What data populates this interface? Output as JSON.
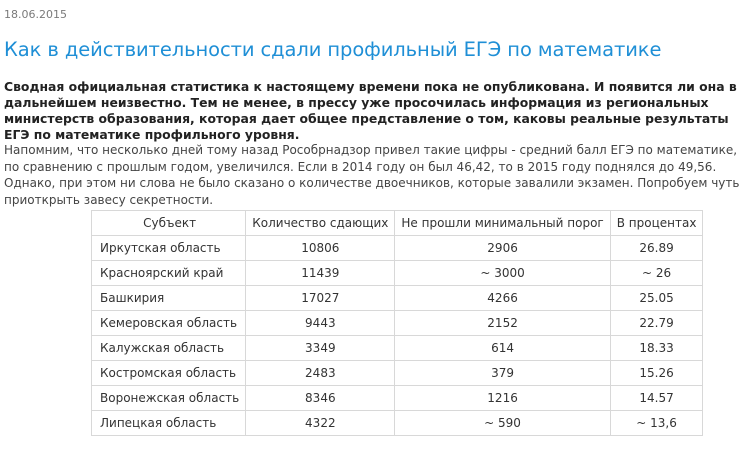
{
  "article": {
    "date": "18.06.2015",
    "title": "Как в действительности сдали профильный ЕГЭ по математике",
    "lead": "Сводная официальная статистика к настоящему времени пока не опубликована. И появится ли она в дальнейшем неизвестно. Тем не менее, в прессу уже просочилась информация из региональных министерств образования, которая дает общее представление о том, каковы реальные результаты ЕГЭ по математике профильного уровня.",
    "body": "Напомним, что несколько дней тому назад Рособрнадзор привел такие цифры - средний балл ЕГЭ по математике, по сравнению с прошлым годом, увеличился. Если в 2014 году он был 46,42, то в 2015 году поднялся до 49,56. Однако, при этом ни слова не было сказано о количестве двоечников, которые завалили экзамен. Попробуем чуть приоткрыть завесу секретности."
  },
  "table": {
    "headers": [
      "Субъект",
      "Количество сдающих",
      "Не прошли минимальный порог",
      "В процентах"
    ],
    "rows": [
      [
        "Иркутская область",
        "10806",
        "2906",
        "26.89"
      ],
      [
        "Красноярский край",
        "11439",
        "~ 3000",
        "~ 26"
      ],
      [
        "Башкирия",
        "17027",
        "4266",
        "25.05"
      ],
      [
        "Кемеровская область",
        "9443",
        "2152",
        "22.79"
      ],
      [
        "Калужская область",
        "3349",
        "614",
        "18.33"
      ],
      [
        "Костромская область",
        "2483",
        "379",
        "15.26"
      ],
      [
        "Воронежская область",
        "8346",
        "1216",
        "14.57"
      ],
      [
        "Липецкая область",
        "4322",
        "~ 590",
        "~ 13,6"
      ]
    ]
  }
}
